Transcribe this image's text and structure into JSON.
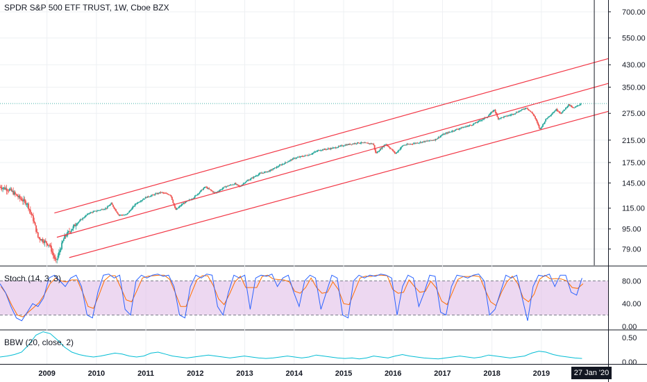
{
  "header": {
    "title": "SPDR S&P 500 ETF TRUST, 1W, Cboe BZX"
  },
  "panes": {
    "stoch_label": "Stoch (14, 3, 3)",
    "bbw_label": "BBW (20, close, 2)"
  },
  "crosshair": {
    "date_label": "27 Jan '20"
  },
  "colors": {
    "up": "#26a69a",
    "down": "#ef5350",
    "channel": "#f23645",
    "k_line": "#2962ff",
    "d_line": "#ff6d00",
    "stoch_band": "#e1bee7",
    "bbw": "#00bcd4",
    "price_line": "#26a69a"
  },
  "chart_data": [
    {
      "type": "candlestick",
      "title": "SPDR S&P 500 ETF TRUST, 1W, Cboe BZX",
      "scale": "log",
      "x_range": [
        2008.05,
        2020.35
      ],
      "y_range": [
        68,
        780
      ],
      "x_ticks": [
        "2009",
        "2010",
        "2011",
        "2012",
        "2013",
        "2014",
        "2015",
        "2016",
        "2017",
        "2018",
        "2019"
      ],
      "y_ticks": [
        "79.00",
        "95.00",
        "115.00",
        "145.00",
        "175.00",
        "215.00",
        "275.00",
        "350.00",
        "430.00",
        "550.00",
        "700.00"
      ],
      "price_path": [
        [
          2008.05,
          140
        ],
        [
          2008.25,
          136
        ],
        [
          2008.45,
          126
        ],
        [
          2008.6,
          120
        ],
        [
          2008.72,
          104
        ],
        [
          2008.82,
          88
        ],
        [
          2008.9,
          86
        ],
        [
          2009.05,
          82
        ],
        [
          2009.18,
          70
        ],
        [
          2009.35,
          88
        ],
        [
          2009.6,
          100
        ],
        [
          2009.85,
          110
        ],
        [
          2010.2,
          115
        ],
        [
          2010.3,
          120
        ],
        [
          2010.45,
          108
        ],
        [
          2010.6,
          108
        ],
        [
          2010.8,
          120
        ],
        [
          2011.0,
          127
        ],
        [
          2011.3,
          133
        ],
        [
          2011.5,
          130
        ],
        [
          2011.6,
          113
        ],
        [
          2011.75,
          120
        ],
        [
          2011.95,
          126
        ],
        [
          2012.2,
          140
        ],
        [
          2012.4,
          132
        ],
        [
          2012.6,
          140
        ],
        [
          2012.8,
          144
        ],
        [
          2012.9,
          140
        ],
        [
          2013.0,
          146
        ],
        [
          2013.3,
          158
        ],
        [
          2013.5,
          162
        ],
        [
          2013.7,
          170
        ],
        [
          2014.0,
          182
        ],
        [
          2014.3,
          188
        ],
        [
          2014.5,
          196
        ],
        [
          2014.8,
          200
        ],
        [
          2015.0,
          205
        ],
        [
          2015.3,
          210
        ],
        [
          2015.6,
          208
        ],
        [
          2015.65,
          190
        ],
        [
          2015.85,
          208
        ],
        [
          2016.05,
          190
        ],
        [
          2016.2,
          205
        ],
        [
          2016.5,
          210
        ],
        [
          2016.85,
          216
        ],
        [
          2017.0,
          226
        ],
        [
          2017.3,
          238
        ],
        [
          2017.6,
          248
        ],
        [
          2017.9,
          266
        ],
        [
          2018.05,
          285
        ],
        [
          2018.12,
          262
        ],
        [
          2018.4,
          272
        ],
        [
          2018.7,
          290
        ],
        [
          2018.85,
          270
        ],
        [
          2018.97,
          237
        ],
        [
          2019.1,
          262
        ],
        [
          2019.3,
          285
        ],
        [
          2019.4,
          275
        ],
        [
          2019.55,
          298
        ],
        [
          2019.65,
          288
        ],
        [
          2019.8,
          301
        ]
      ],
      "last_close": 301,
      "channel_lines": [
        {
          "name": "upper",
          "from": [
            2009.15,
            110
          ],
          "to": [
            2020.35,
            455
          ]
        },
        {
          "name": "middle",
          "from": [
            2009.2,
            88
          ],
          "to": [
            2020.35,
            362
          ]
        },
        {
          "name": "lower",
          "from": [
            2009.45,
            73
          ],
          "to": [
            2020.35,
            280
          ]
        }
      ],
      "crosshair_x": 2020.07
    },
    {
      "type": "line",
      "title": "Stoch (14, 3, 3)",
      "y_range": [
        0,
        100
      ],
      "y_ticks": [
        "80.00",
        "40.00",
        "0.00"
      ],
      "band": [
        20,
        80
      ],
      "series": [
        {
          "values": [
            75,
            60,
            35,
            15,
            10,
            25,
            40,
            35,
            50,
            85,
            90,
            80,
            70,
            85,
            90,
            70,
            20,
            15,
            60,
            90,
            92,
            85,
            90,
            30,
            20,
            80,
            90,
            85,
            90,
            92,
            88,
            90,
            70,
            20,
            15,
            70,
            90,
            85,
            92,
            90,
            35,
            20,
            60,
            90,
            85,
            90,
            30,
            85,
            90,
            88,
            92,
            70,
            85,
            90,
            60,
            35,
            80,
            90,
            85,
            30,
            60,
            90,
            85,
            20,
            15,
            80,
            90,
            85,
            90,
            88,
            92,
            90,
            85,
            20,
            70,
            90,
            85,
            35,
            60,
            90,
            88,
            25,
            20,
            70,
            90,
            88,
            85,
            90,
            92,
            80,
            20,
            30,
            60,
            90,
            85,
            90,
            50,
            10,
            70,
            90,
            88,
            92,
            70,
            90,
            90,
            60,
            55,
            85
          ]
        }
      ]
    },
    {
      "type": "line",
      "title": "BBW (20, close, 2)",
      "y_range": [
        0,
        0.6
      ],
      "y_ticks": [
        "0.50",
        "0.00"
      ],
      "series": [
        {
          "values": [
            0.1,
            0.12,
            0.15,
            0.2,
            0.35,
            0.55,
            0.62,
            0.58,
            0.45,
            0.3,
            0.2,
            0.15,
            0.12,
            0.1,
            0.12,
            0.15,
            0.18,
            0.16,
            0.12,
            0.1,
            0.12,
            0.18,
            0.2,
            0.16,
            0.12,
            0.1,
            0.08,
            0.1,
            0.12,
            0.14,
            0.12,
            0.1,
            0.08,
            0.1,
            0.12,
            0.1,
            0.08,
            0.07,
            0.08,
            0.1,
            0.12,
            0.1,
            0.08,
            0.1,
            0.14,
            0.12,
            0.1,
            0.08,
            0.07,
            0.08,
            0.06,
            0.08,
            0.12,
            0.1,
            0.08,
            0.12,
            0.15,
            0.12,
            0.1,
            0.08,
            0.07,
            0.06,
            0.08,
            0.1,
            0.12,
            0.1,
            0.08,
            0.1,
            0.14,
            0.12,
            0.1,
            0.08,
            0.1,
            0.12,
            0.18,
            0.22,
            0.2,
            0.15,
            0.12,
            0.1,
            0.08,
            0.07
          ]
        }
      ]
    }
  ]
}
